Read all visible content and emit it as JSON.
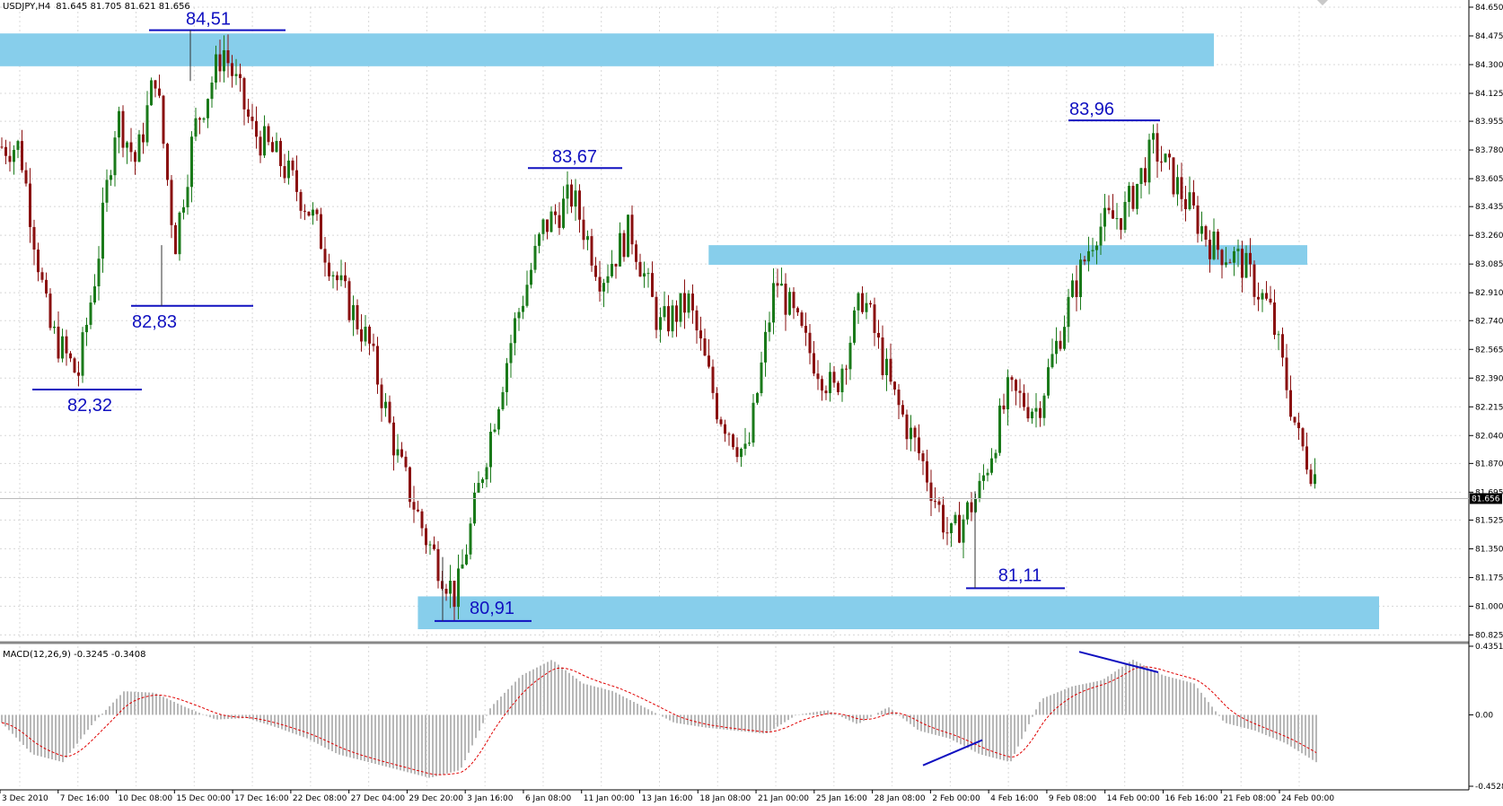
{
  "header": {
    "symbol_tf": "USDJPY,H4",
    "ohlc": "81.645 81.705 81.621 81.656"
  },
  "macd": {
    "label": "MACD(12,26,9) -0.3245 -0.3408"
  },
  "colors": {
    "bull": "#1a7a1a",
    "bear": "#8a1010",
    "zone": "#87ceeb",
    "annotation": "#1010c0",
    "histogram": "#b8b8b8",
    "signal": "#e00000",
    "grid": "#d8d8d8"
  },
  "chart_data": [
    {
      "type": "candlestick",
      "symbol": "USDJPY",
      "timeframe": "H4",
      "ylim": [
        80.8,
        84.65
      ],
      "y_ticks": [
        "84.650",
        "84.475",
        "84.300",
        "84.125",
        "83.955",
        "83.780",
        "83.605",
        "83.435",
        "83.260",
        "83.085",
        "82.910",
        "82.740",
        "82.565",
        "82.390",
        "82.215",
        "82.040",
        "81.870",
        "81.695",
        "81.525",
        "81.350",
        "81.175",
        "81.000",
        "80.825"
      ],
      "current_price": "81.656",
      "x_labels": [
        "3 Dec 2010",
        "7 Dec 16:00",
        "10 Dec 08:00",
        "15 Dec 00:00",
        "17 Dec 16:00",
        "22 Dec 08:00",
        "27 Dec 04:00",
        "29 Dec 20:00",
        "3 Jan 16:00",
        "6 Jan 08:00",
        "11 Jan 00:00",
        "13 Jan 16:00",
        "18 Jan 08:00",
        "21 Jan 00:00",
        "25 Jan 16:00",
        "28 Jan 08:00",
        "2 Feb 00:00",
        "4 Feb 16:00",
        "9 Feb 08:00",
        "14 Feb 00:00",
        "16 Feb 16:00",
        "21 Feb 08:00",
        "24 Feb 00:00"
      ],
      "close_path": [
        [
          "3 Dec 2010",
          83.8
        ],
        [
          "3 Dec 2010",
          82.7
        ],
        [
          "7 Dec 16:00",
          82.4
        ],
        [
          "7 Dec 16:00",
          83.1
        ],
        [
          "7 Dec 16:00",
          84.0
        ],
        [
          "10 Dec 08:00",
          83.7
        ],
        [
          "10 Dec 08:00",
          84.25
        ],
        [
          "10 Dec 08:00",
          83.2
        ],
        [
          "15 Dec 00:00",
          83.9
        ],
        [
          "15 Dec 00:00",
          84.4
        ],
        [
          "17 Dec 16:00",
          83.9
        ],
        [
          "17 Dec 16:00",
          83.7
        ],
        [
          "22 Dec 08:00",
          83.4
        ],
        [
          "22 Dec 08:00",
          82.95
        ],
        [
          "27 Dec 04:00",
          82.6
        ],
        [
          "27 Dec 04:00",
          81.9
        ],
        [
          "29 Dec 20:00",
          81.4
        ],
        [
          "29 Dec 20:00",
          81.05
        ],
        [
          "3 Jan 16:00",
          81.9
        ],
        [
          "3 Jan 16:00",
          82.7
        ],
        [
          "6 Jan 08:00",
          83.3
        ],
        [
          "6 Jan 08:00",
          83.5
        ],
        [
          "11 Jan 00:00",
          83.0
        ],
        [
          "11 Jan 00:00",
          83.3
        ],
        [
          "13 Jan 16:00",
          82.7
        ],
        [
          "13 Jan 16:00",
          82.85
        ],
        [
          "18 Jan 08:00",
          82.2
        ],
        [
          "18 Jan 08:00",
          81.9
        ],
        [
          "21 Jan 00:00",
          83.0
        ],
        [
          "21 Jan 00:00",
          82.6
        ],
        [
          "25 Jan 16:00",
          82.3
        ],
        [
          "25 Jan 16:00",
          82.9
        ],
        [
          "28 Jan 08:00",
          82.3
        ],
        [
          "28 Jan 08:00",
          81.9
        ],
        [
          "2 Feb 00:00",
          81.4
        ],
        [
          "2 Feb 00:00",
          81.7
        ],
        [
          "4 Feb 16:00",
          82.3
        ],
        [
          "4 Feb 16:00",
          82.2
        ],
        [
          "9 Feb 08:00",
          82.8
        ],
        [
          "9 Feb 08:00",
          83.3
        ],
        [
          "14 Feb 00:00",
          83.4
        ],
        [
          "14 Feb 00:00",
          83.8
        ],
        [
          "16 Feb 16:00",
          83.5
        ],
        [
          "16 Feb 16:00",
          83.2
        ],
        [
          "21 Feb 08:00",
          83.1
        ],
        [
          "21 Feb 08:00",
          82.8
        ],
        [
          "24 Feb 00:00",
          82.0
        ],
        [
          "24 Feb 00:00",
          81.656
        ]
      ],
      "zones": [
        {
          "from": 84.29,
          "to": 84.49,
          "x_start": "3 Dec 2010",
          "x_end": "21 Feb 08:00"
        },
        {
          "from": 83.08,
          "to": 83.2,
          "x_start": "18 Jan 08:00",
          "x_end": "24 Feb 00:00"
        },
        {
          "from": 80.86,
          "to": 81.06,
          "x_start": "29 Dec 20:00",
          "x_end": "24 Feb 00:00"
        }
      ],
      "annotations": [
        {
          "label": "84,51",
          "price": 84.51
        },
        {
          "label": "82,83",
          "price": 82.83
        },
        {
          "label": "82,32",
          "price": 82.32
        },
        {
          "label": "83,67",
          "price": 83.67
        },
        {
          "label": "80,91",
          "price": 80.91
        },
        {
          "label": "83,96",
          "price": 83.96
        },
        {
          "label": "81,11",
          "price": 81.11
        }
      ]
    },
    {
      "type": "bar",
      "name": "MACD(12,26,9)",
      "ylim": [
        -0.4528,
        0.4351
      ],
      "y_ticks": [
        "0.4351",
        "0.00",
        "-0.4528"
      ],
      "main": -0.3245,
      "signal": -0.3408,
      "histogram_path": [
        -0.05,
        -0.25,
        -0.3,
        -0.05,
        0.15,
        0.14,
        0.05,
        -0.03,
        -0.02,
        -0.08,
        -0.15,
        -0.25,
        -0.3,
        -0.35,
        -0.4,
        -0.35,
        0.05,
        0.25,
        0.35,
        0.2,
        0.15,
        0.05,
        -0.05,
        -0.08,
        -0.1,
        -0.12,
        0.0,
        0.03,
        -0.06,
        0.05,
        -0.1,
        -0.15,
        -0.25,
        -0.3,
        0.1,
        0.18,
        0.22,
        0.35,
        0.25,
        0.2,
        -0.05,
        -0.1,
        -0.18,
        -0.3
      ],
      "divergences": [
        {
          "from": -0.32,
          "to": -0.16
        },
        {
          "from": 0.4,
          "to": 0.27
        }
      ]
    }
  ]
}
